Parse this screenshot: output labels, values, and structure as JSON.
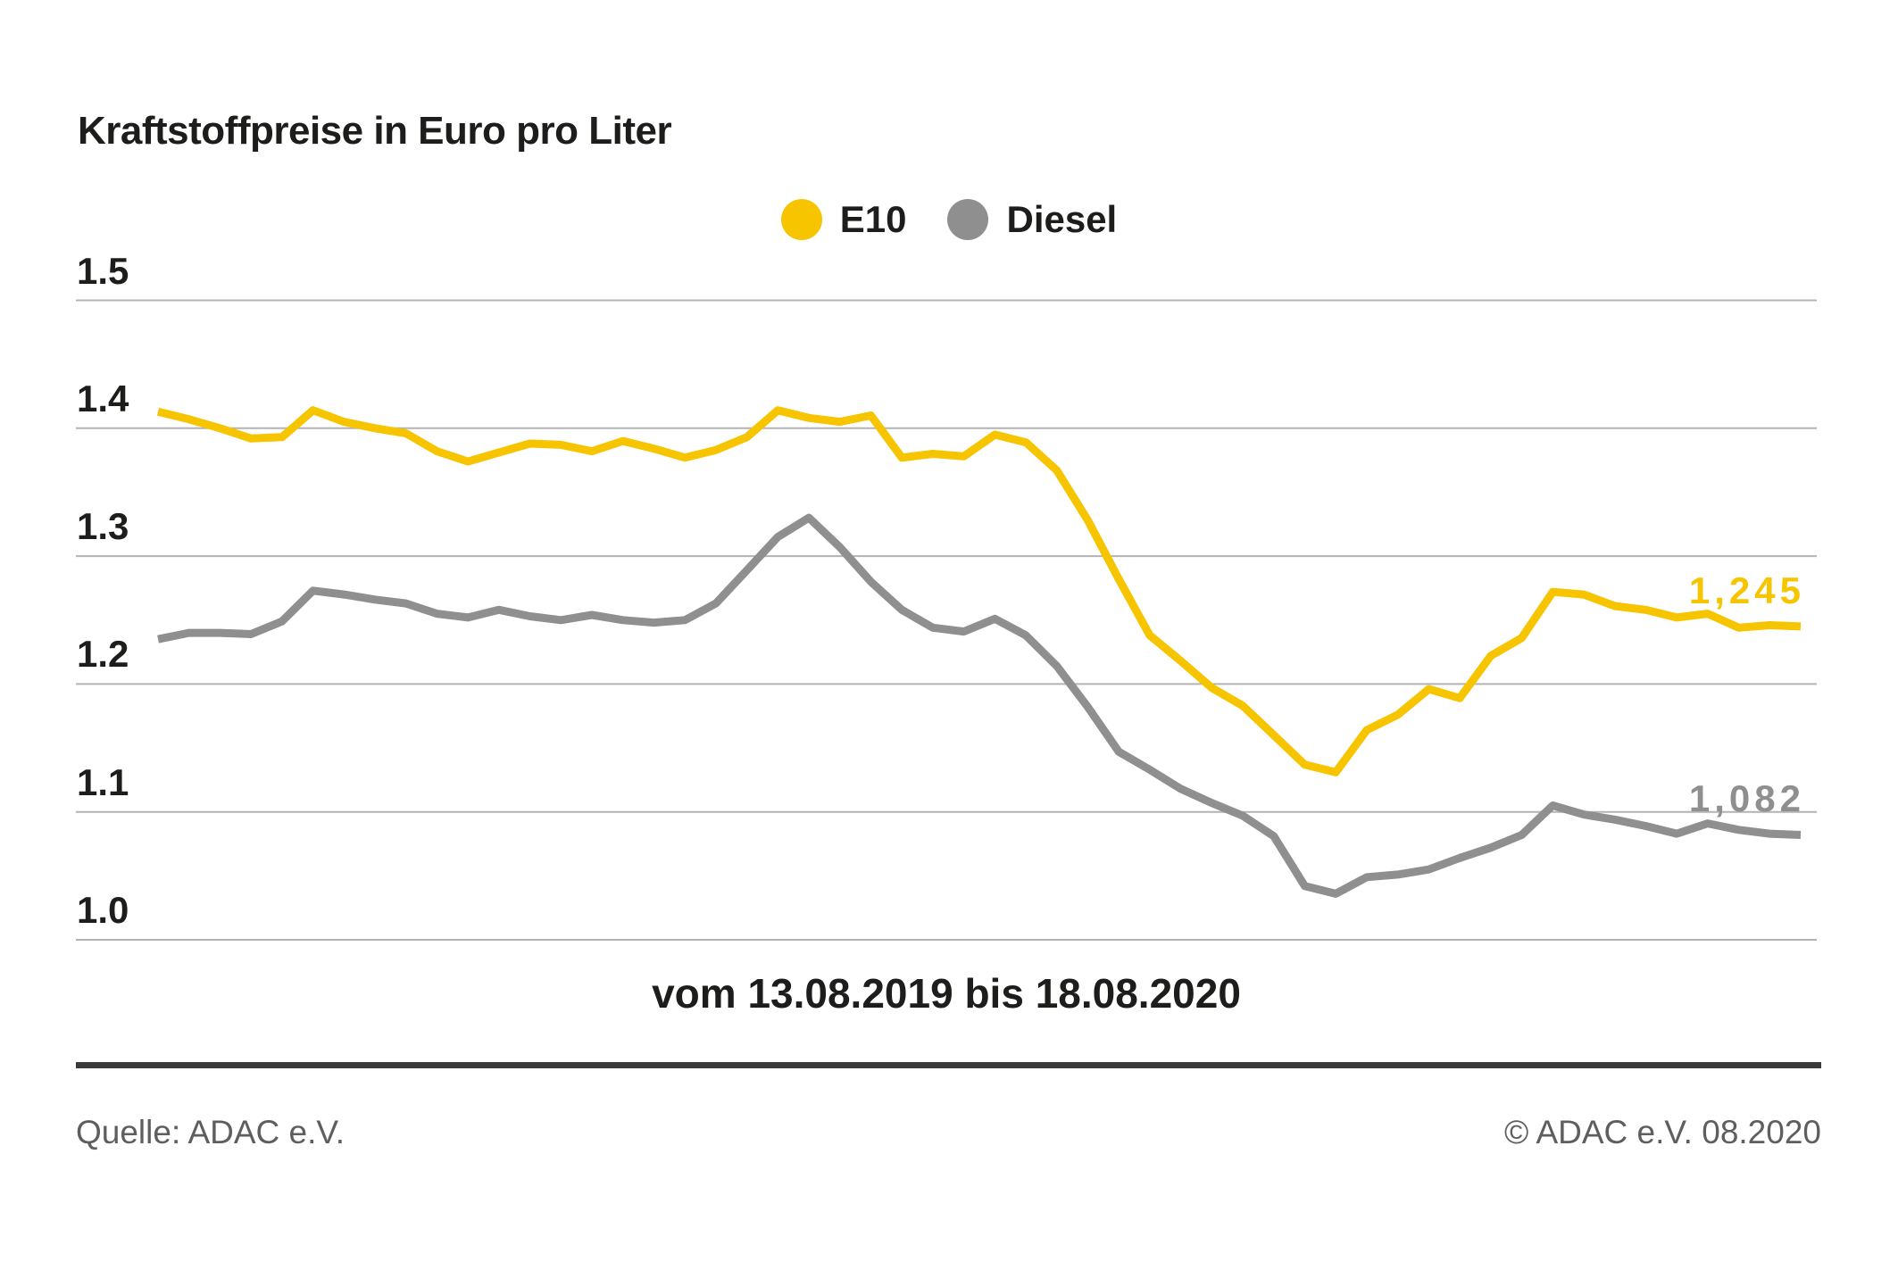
{
  "title": "Kraftstoffpreise in Euro pro Liter",
  "x_axis_label": "vom 13.08.2019 bis 18.08.2020",
  "footer": {
    "source": "Quelle: ADAC e.V.",
    "copyright": "© ADAC e.V. 08.2020"
  },
  "colors": {
    "e10": "#f7c400",
    "diesel": "#8f8f8f",
    "text": "#1d1d1b",
    "grid": "#b3b3b3",
    "divider": "#3a3a3a",
    "footer_text": "#5e5e5e",
    "background": "#ffffff"
  },
  "chart_data": {
    "type": "line",
    "title": "Kraftstoffpreise in Euro pro Liter",
    "xlabel": "vom 13.08.2019 bis 18.08.2020",
    "ylabel": "Euro pro Liter",
    "x_start": "13.08.2019",
    "x_end": "18.08.2020",
    "interval": "weekly",
    "ylim": [
      1.0,
      1.5
    ],
    "y_ticks": [
      "1.0",
      "1.1",
      "1.2",
      "1.3",
      "1.4",
      "1.5"
    ],
    "grid": true,
    "legend_position": "top-center",
    "series": [
      {
        "name": "E10",
        "color": "#f7c400",
        "end_label": "1,245",
        "end_value": 1.245,
        "values": [
          1.413,
          1.407,
          1.4,
          1.392,
          1.393,
          1.414,
          1.405,
          1.4,
          1.396,
          1.382,
          1.374,
          1.381,
          1.388,
          1.387,
          1.382,
          1.39,
          1.384,
          1.377,
          1.383,
          1.393,
          1.414,
          1.408,
          1.405,
          1.41,
          1.377,
          1.38,
          1.378,
          1.395,
          1.389,
          1.367,
          1.328,
          1.282,
          1.238,
          1.218,
          1.197,
          1.183,
          1.16,
          1.137,
          1.131,
          1.164,
          1.176,
          1.196,
          1.189,
          1.222,
          1.236,
          1.272,
          1.27,
          1.261,
          1.258,
          1.252,
          1.255,
          1.244,
          1.246,
          1.245
        ]
      },
      {
        "name": "Diesel",
        "color": "#8f8f8f",
        "end_label": "1,082",
        "end_value": 1.082,
        "values": [
          1.235,
          1.24,
          1.24,
          1.239,
          1.249,
          1.273,
          1.27,
          1.266,
          1.263,
          1.255,
          1.252,
          1.258,
          1.253,
          1.25,
          1.254,
          1.25,
          1.248,
          1.25,
          1.263,
          1.289,
          1.315,
          1.33,
          1.307,
          1.28,
          1.258,
          1.244,
          1.241,
          1.251,
          1.238,
          1.214,
          1.182,
          1.147,
          1.133,
          1.118,
          1.107,
          1.097,
          1.081,
          1.042,
          1.036,
          1.049,
          1.051,
          1.055,
          1.064,
          1.072,
          1.082,
          1.105,
          1.098,
          1.094,
          1.089,
          1.083,
          1.091,
          1.086,
          1.083,
          1.082
        ]
      }
    ]
  }
}
